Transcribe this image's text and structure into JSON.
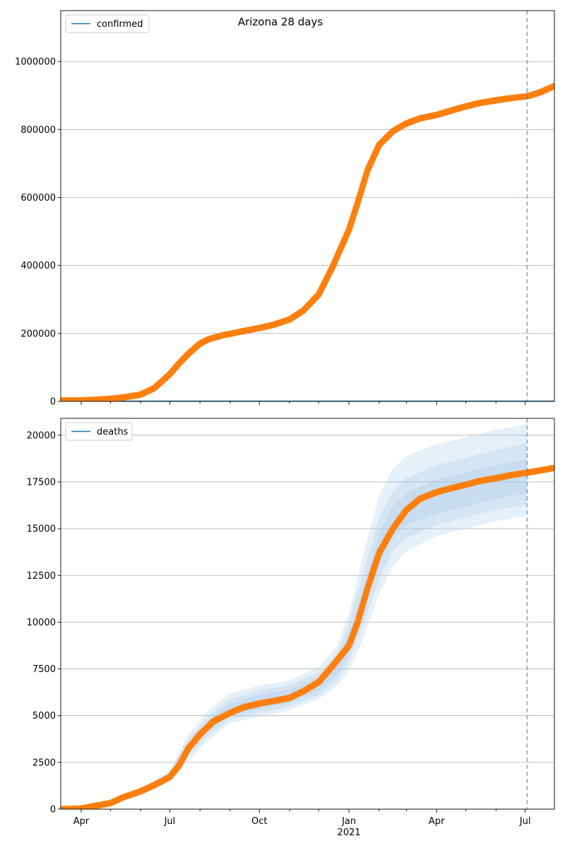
{
  "figure": {
    "title": "Arizona 28 days"
  },
  "colors": {
    "observed": "#ff7f0e",
    "model": "#1f77b4",
    "band": "#a6c8e6",
    "grid": "#b0b0b0",
    "axis": "#000000"
  },
  "chart_data": [
    {
      "type": "scatter",
      "name": "confirmed-panel",
      "legend": {
        "label": "confirmed",
        "placement": "upper-left"
      },
      "x_axis": {
        "range": [
          "2020-03-11",
          "2021-07-31"
        ],
        "tick_labels": [],
        "year_label": ""
      },
      "y_axis": {
        "range": [
          0,
          1150000
        ],
        "ticks": [
          0,
          200000,
          400000,
          600000,
          800000,
          1000000
        ],
        "tick_labels": [
          "0",
          "200000",
          "400000",
          "600000",
          "800000",
          "1000000"
        ]
      },
      "grid": "horizontal",
      "forecast_start": "2021-07-03",
      "observed": [
        [
          "2020-03-11",
          3000
        ],
        [
          "2020-04-01",
          3000
        ],
        [
          "2020-04-15",
          4500
        ],
        [
          "2020-05-01",
          7600
        ],
        [
          "2020-05-15",
          12000
        ],
        [
          "2020-06-01",
          20000
        ],
        [
          "2020-06-15",
          39000
        ],
        [
          "2020-07-01",
          80000
        ],
        [
          "2020-07-10",
          110000
        ],
        [
          "2020-07-20",
          140000
        ],
        [
          "2020-08-01",
          170000
        ],
        [
          "2020-08-10",
          183000
        ],
        [
          "2020-08-25",
          195000
        ],
        [
          "2020-09-15",
          207000
        ],
        [
          "2020-10-01",
          216000
        ],
        [
          "2020-10-15",
          225000
        ],
        [
          "2020-11-01",
          241000
        ],
        [
          "2020-11-15",
          267000
        ],
        [
          "2020-12-01",
          315000
        ],
        [
          "2020-12-15",
          395000
        ],
        [
          "2021-01-01",
          505000
        ],
        [
          "2021-01-10",
          585000
        ],
        [
          "2021-01-20",
          680000
        ],
        [
          "2021-02-01",
          755000
        ],
        [
          "2021-02-15",
          795000
        ],
        [
          "2021-03-01",
          818000
        ],
        [
          "2021-03-15",
          833000
        ],
        [
          "2021-04-01",
          843000
        ],
        [
          "2021-04-15",
          855000
        ],
        [
          "2021-05-01",
          868000
        ],
        [
          "2021-05-15",
          878000
        ],
        [
          "2021-06-01",
          886000
        ],
        [
          "2021-06-15",
          892000
        ],
        [
          "2021-07-03",
          898000
        ],
        [
          "2021-07-15",
          908000
        ],
        [
          "2021-07-31",
          928000
        ]
      ],
      "model_line": [
        [
          "2020-03-11",
          800
        ],
        [
          "2021-07-31",
          800
        ]
      ]
    },
    {
      "type": "scatter",
      "name": "deaths-panel",
      "legend": {
        "label": "deaths",
        "placement": "upper-left"
      },
      "x_axis": {
        "range": [
          "2020-03-11",
          "2021-07-31"
        ],
        "ticks": [
          "2020-04-01",
          "2020-07-01",
          "2020-10-01",
          "2021-01-01",
          "2021-04-01",
          "2021-07-01"
        ],
        "tick_labels": [
          "Apr",
          "Jul",
          "Oct",
          "Jan",
          "Apr",
          "Jul"
        ],
        "year_label": "2021"
      },
      "y_axis": {
        "range": [
          0,
          20900
        ],
        "ticks": [
          0,
          2500,
          5000,
          7500,
          10000,
          12500,
          15000,
          17500,
          20000
        ],
        "tick_labels": [
          "0",
          "2500",
          "5000",
          "7500",
          "10000",
          "12500",
          "15000",
          "17500",
          "20000"
        ]
      },
      "grid": "horizontal",
      "forecast_start": "2021-07-03",
      "observed": [
        [
          "2020-03-11",
          0
        ],
        [
          "2020-04-01",
          30
        ],
        [
          "2020-04-15",
          170
        ],
        [
          "2020-05-01",
          320
        ],
        [
          "2020-05-15",
          650
        ],
        [
          "2020-06-01",
          950
        ],
        [
          "2020-06-15",
          1280
        ],
        [
          "2020-07-01",
          1720
        ],
        [
          "2020-07-10",
          2300
        ],
        [
          "2020-07-20",
          3250
        ],
        [
          "2020-08-01",
          4000
        ],
        [
          "2020-08-15",
          4700
        ],
        [
          "2020-09-01",
          5150
        ],
        [
          "2020-09-15",
          5450
        ],
        [
          "2020-10-01",
          5650
        ],
        [
          "2020-10-15",
          5780
        ],
        [
          "2020-11-01",
          5950
        ],
        [
          "2020-11-15",
          6300
        ],
        [
          "2020-12-01",
          6800
        ],
        [
          "2020-12-15",
          7650
        ],
        [
          "2021-01-01",
          8750
        ],
        [
          "2021-01-10",
          10000
        ],
        [
          "2021-01-20",
          11800
        ],
        [
          "2021-02-01",
          13700
        ],
        [
          "2021-02-15",
          15000
        ],
        [
          "2021-03-01",
          16000
        ],
        [
          "2021-03-15",
          16600
        ],
        [
          "2021-04-01",
          16950
        ],
        [
          "2021-04-15",
          17150
        ],
        [
          "2021-05-01",
          17350
        ],
        [
          "2021-05-15",
          17550
        ],
        [
          "2021-06-01",
          17700
        ],
        [
          "2021-06-15",
          17850
        ],
        [
          "2021-07-03",
          18000
        ],
        [
          "2021-07-15",
          18100
        ],
        [
          "2021-07-31",
          18250
        ]
      ],
      "bands": [
        {
          "x": [
            "2020-03-11",
            "2020-04-01",
            "2020-05-01",
            "2020-06-01",
            "2020-07-01",
            "2020-07-20",
            "2020-08-10",
            "2020-09-01",
            "2020-10-01",
            "2020-11-01",
            "2020-12-01",
            "2020-12-20",
            "2021-01-01",
            "2021-01-15",
            "2021-02-01",
            "2021-02-15",
            "2021-03-01",
            "2021-04-01",
            "2021-05-01",
            "2021-06-01",
            "2021-07-03"
          ],
          "lower": [
            0,
            20,
            260,
            870,
            1500,
            2600,
            3700,
            4600,
            4950,
            5300,
            5900,
            6600,
            7400,
            9000,
            11500,
            13000,
            13800,
            14600,
            15000,
            15400,
            15700
          ],
          "upper": [
            0,
            60,
            420,
            1100,
            2100,
            4000,
            5300,
            6200,
            6600,
            6900,
            7600,
            8700,
            10500,
            13500,
            16800,
            18200,
            18900,
            19500,
            19900,
            20300,
            20600
          ]
        },
        {
          "x": [
            "2020-03-11",
            "2020-04-01",
            "2020-05-01",
            "2020-06-01",
            "2020-07-01",
            "2020-07-20",
            "2020-08-10",
            "2020-09-01",
            "2020-10-01",
            "2020-11-01",
            "2020-12-01",
            "2020-12-20",
            "2021-01-01",
            "2021-01-15",
            "2021-02-01",
            "2021-02-15",
            "2021-03-01",
            "2021-04-01",
            "2021-05-01",
            "2021-06-01",
            "2021-07-03"
          ],
          "lower": [
            0,
            25,
            290,
            920,
            1600,
            2850,
            3950,
            4800,
            5150,
            5500,
            6100,
            6900,
            7900,
            9800,
            12300,
            13800,
            14500,
            15200,
            15600,
            16000,
            16300
          ],
          "upper": [
            0,
            50,
            380,
            1050,
            1950,
            3750,
            5000,
            5900,
            6350,
            6650,
            7300,
            8300,
            9900,
            12500,
            15600,
            17000,
            17700,
            18400,
            18800,
            19200,
            19600
          ]
        },
        {
          "x": [
            "2020-03-11",
            "2020-04-01",
            "2020-05-01",
            "2020-06-01",
            "2020-07-01",
            "2020-07-20",
            "2020-08-10",
            "2020-09-01",
            "2020-10-01",
            "2020-11-01",
            "2020-12-01",
            "2020-12-20",
            "2021-01-01",
            "2021-01-15",
            "2021-02-01",
            "2021-02-15",
            "2021-03-01",
            "2021-04-01",
            "2021-05-01",
            "2021-06-01",
            "2021-07-03"
          ],
          "lower": [
            0,
            30,
            320,
            960,
            1700,
            3050,
            4200,
            5000,
            5350,
            5700,
            6350,
            7200,
            8300,
            10500,
            13000,
            14500,
            15200,
            15800,
            16200,
            16600,
            16900
          ],
          "upper": [
            0,
            45,
            350,
            1010,
            1850,
            3500,
            4750,
            5650,
            6100,
            6400,
            7050,
            7950,
            9400,
            11700,
            14700,
            16200,
            16900,
            17600,
            18000,
            18400,
            18700
          ]
        }
      ]
    }
  ]
}
